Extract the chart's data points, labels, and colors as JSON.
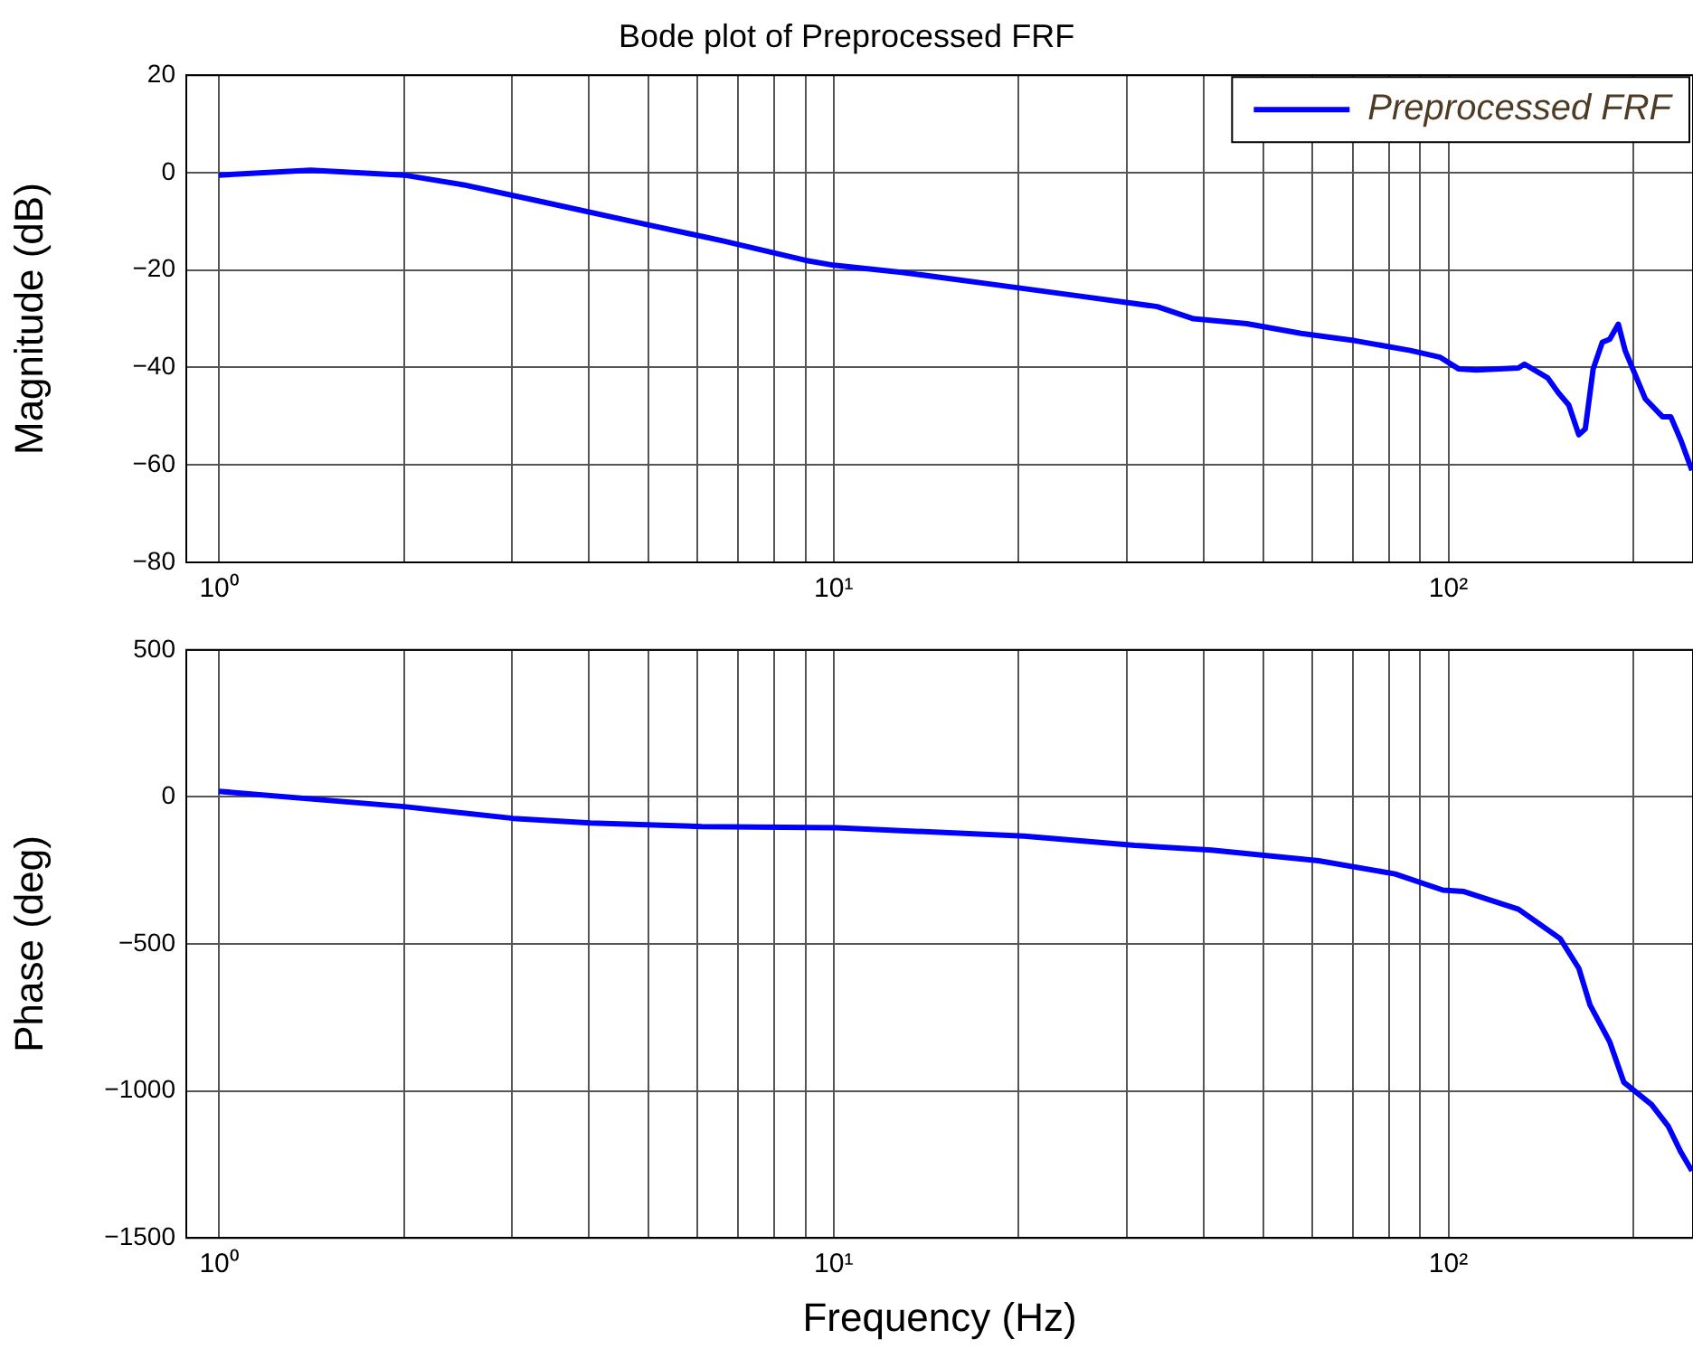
{
  "chart_data": [
    {
      "type": "line",
      "title": "Bode plot of Preprocessed FRF",
      "ylabel": "Magnitude (dB)",
      "log": "x",
      "grid": true,
      "legend": "top right",
      "line_style": "solid",
      "marker": "none",
      "xlim": [
        0.885,
        250
      ],
      "xticks": [
        {
          "value": 1,
          "label": "10⁰"
        },
        {
          "value": 2,
          "label": null
        },
        {
          "value": 3,
          "label": null
        },
        {
          "value": 4,
          "label": null
        },
        {
          "value": 5,
          "label": null
        },
        {
          "value": 6,
          "label": null
        },
        {
          "value": 7,
          "label": null
        },
        {
          "value": 8,
          "label": null
        },
        {
          "value": 9,
          "label": null
        },
        {
          "value": 10,
          "label": "10¹"
        },
        {
          "value": 20,
          "label": null
        },
        {
          "value": 30,
          "label": null
        },
        {
          "value": 40,
          "label": null
        },
        {
          "value": 50,
          "label": null
        },
        {
          "value": 60,
          "label": null
        },
        {
          "value": 70,
          "label": null
        },
        {
          "value": 80,
          "label": null
        },
        {
          "value": 90,
          "label": null
        },
        {
          "value": 100,
          "label": "10²"
        },
        {
          "value": 200,
          "label": null
        }
      ],
      "ylim": [
        -80,
        20
      ],
      "yticks": [
        -80,
        -60,
        -40,
        -20,
        0,
        20
      ],
      "series": [
        {
          "name": "Preprocessed FRF",
          "color": "#0000ff",
          "x": [
            1,
            1.41,
            2,
            2.5,
            3.36,
            4.7,
            6.6,
            9,
            10,
            13,
            18.3,
            25.7,
            33.6,
            38.5,
            47,
            57.6,
            70.5,
            86.7,
            97,
            104,
            111,
            130,
            133,
            145,
            151,
            157,
            163,
            167,
            172,
            178,
            183,
            189,
            194,
            209,
            223,
            230,
            239,
            249
          ],
          "values": [
            -0.5,
            0.5,
            -0.5,
            -2.5,
            -6,
            -10,
            -14,
            -18,
            -19,
            -20.5,
            -23,
            -25.5,
            -27.5,
            -30,
            -31,
            -33,
            -34.5,
            -36.5,
            -37.9,
            -40.3,
            -40.5,
            -40.1,
            -39.3,
            -42.1,
            -45.2,
            -47.7,
            -53.8,
            -52.6,
            -40.3,
            -34.8,
            -34.2,
            -31.1,
            -36.6,
            -46.4,
            -50.1,
            -50.1,
            -55,
            -61.1
          ]
        }
      ]
    },
    {
      "type": "line",
      "xlabel": "Frequency (Hz)",
      "ylabel": "Phase (deg)",
      "log": "x",
      "grid": true,
      "line_style": "solid",
      "marker": "none",
      "xlim": [
        0.885,
        250
      ],
      "xticks": [
        {
          "value": 1,
          "label": "10⁰"
        },
        {
          "value": 2,
          "label": null
        },
        {
          "value": 3,
          "label": null
        },
        {
          "value": 4,
          "label": null
        },
        {
          "value": 5,
          "label": null
        },
        {
          "value": 6,
          "label": null
        },
        {
          "value": 7,
          "label": null
        },
        {
          "value": 8,
          "label": null
        },
        {
          "value": 9,
          "label": null
        },
        {
          "value": 10,
          "label": "10¹"
        },
        {
          "value": 20,
          "label": null
        },
        {
          "value": 30,
          "label": null
        },
        {
          "value": 40,
          "label": null
        },
        {
          "value": 50,
          "label": null
        },
        {
          "value": 60,
          "label": null
        },
        {
          "value": 70,
          "label": null
        },
        {
          "value": 80,
          "label": null
        },
        {
          "value": 90,
          "label": null
        },
        {
          "value": 100,
          "label": "10²"
        },
        {
          "value": 200,
          "label": null
        }
      ],
      "ylim": [
        -1500,
        500
      ],
      "yticks": [
        -1500,
        -1000,
        -500,
        0,
        500
      ],
      "series": [
        {
          "color": "#0000ff",
          "x": [
            1,
            2,
            3.01,
            4.02,
            6.1,
            10.1,
            20.4,
            30.9,
            41.2,
            61.5,
            81.9,
            98,
            106,
            130,
            152,
            163,
            170,
            183,
            193,
            214,
            228,
            239,
            249
          ],
          "values": [
            19,
            -33,
            -73,
            -89,
            -101,
            -105,
            -133,
            -165,
            -181,
            -217,
            -262,
            -317,
            -322,
            -382,
            -482,
            -583,
            -708,
            -833,
            -971,
            -1046,
            -1121,
            -1209,
            -1272
          ]
        }
      ]
    }
  ]
}
